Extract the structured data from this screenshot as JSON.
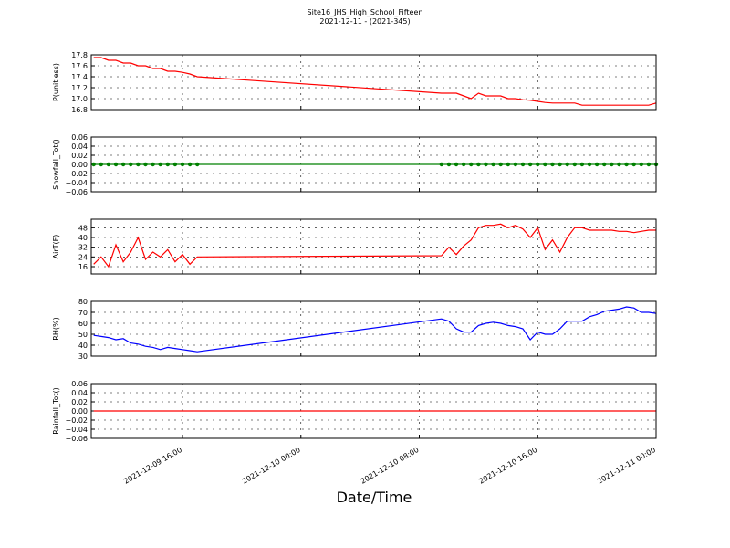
{
  "title": "Site16_JHS_High_School_Fifteen",
  "subtitle": "2021-12-11 - (2021-345)",
  "xlabel": "Date/Time",
  "xlim": [
    "2021-12-09 09:50",
    "2021-12-11 00:00"
  ],
  "xticks": [
    "2021-12-09 16:00",
    "2021-12-10 00:00",
    "2021-12-10 08:00",
    "2021-12-10 16:00",
    "2021-12-11 00:00"
  ],
  "grid": true,
  "x": [
    "2021-12-09 10:00",
    "2021-12-09 10:30",
    "2021-12-09 11:00",
    "2021-12-09 11:30",
    "2021-12-09 12:00",
    "2021-12-09 12:30",
    "2021-12-09 13:00",
    "2021-12-09 13:30",
    "2021-12-09 14:00",
    "2021-12-09 14:30",
    "2021-12-09 15:00",
    "2021-12-09 15:30",
    "2021-12-09 16:00",
    "2021-12-09 16:30",
    "2021-12-09 17:00",
    "2021-12-10 09:30",
    "2021-12-10 10:00",
    "2021-12-10 10:30",
    "2021-12-10 11:00",
    "2021-12-10 11:30",
    "2021-12-10 12:00",
    "2021-12-10 12:30",
    "2021-12-10 13:00",
    "2021-12-10 13:30",
    "2021-12-10 14:00",
    "2021-12-10 14:30",
    "2021-12-10 15:00",
    "2021-12-10 15:30",
    "2021-12-10 16:00",
    "2021-12-10 16:30",
    "2021-12-10 17:00",
    "2021-12-10 17:30",
    "2021-12-10 18:00",
    "2021-12-10 18:30",
    "2021-12-10 19:00",
    "2021-12-10 19:30",
    "2021-12-10 20:00",
    "2021-12-10 20:30",
    "2021-12-10 21:00",
    "2021-12-10 21:30",
    "2021-12-10 22:00",
    "2021-12-10 22:30",
    "2021-12-10 23:00",
    "2021-12-10 23:30",
    "2021-12-11 00:00"
  ],
  "chart_data": [
    {
      "type": "line",
      "ylabel": "P(unitless)",
      "color": "#ff0000",
      "ylim": [
        16.8,
        17.8
      ],
      "yticks": [
        16.8,
        {
          "value": 17,
          "label": "17.0"
        },
        17.2,
        17.4,
        17.6,
        17.8
      ],
      "values": [
        17.75,
        17.75,
        17.7,
        17.7,
        17.65,
        17.65,
        17.6,
        17.6,
        17.55,
        17.55,
        17.5,
        17.5,
        17.48,
        17.45,
        17.4,
        17.1,
        17.1,
        17.1,
        17.05,
        17.0,
        17.1,
        17.05,
        17.05,
        17.05,
        17.0,
        17.0,
        16.98,
        16.97,
        16.95,
        16.93,
        16.92,
        16.92,
        16.92,
        16.92,
        16.88,
        16.88,
        16.88,
        16.88,
        16.88,
        16.88,
        16.88,
        16.88,
        16.88,
        16.88,
        16.92
      ]
    },
    {
      "type": "line",
      "ylabel": "Snowfall_Tot()",
      "color": "#008000",
      "markers": true,
      "ylim": [
        -0.06,
        0.06
      ],
      "yticks": [
        {
          "value": -0.06,
          "label": "−0.06"
        },
        {
          "value": -0.04,
          "label": "−0.04"
        },
        {
          "value": -0.02,
          "label": "−0.02"
        },
        {
          "value": 0,
          "label": "0.00"
        },
        0.02,
        0.04,
        0.06
      ],
      "values": [
        0,
        0,
        0,
        0,
        0,
        0,
        0,
        0,
        0,
        0,
        0,
        0,
        0,
        0,
        0,
        0,
        0,
        0,
        0,
        0,
        0,
        0,
        0,
        0,
        0,
        0,
        0,
        0,
        0,
        0,
        0,
        0,
        0,
        0,
        0,
        0,
        0,
        0,
        0,
        0,
        0,
        0,
        0,
        0,
        0
      ]
    },
    {
      "type": "line",
      "ylabel": "AirT(F)",
      "color": "#ff0000",
      "ylim": [
        10,
        55
      ],
      "yticks": [
        16,
        24,
        32,
        40,
        48
      ],
      "values": [
        18,
        24,
        16,
        34,
        20,
        28,
        40,
        22,
        28,
        24,
        30,
        20,
        26,
        18,
        24,
        25,
        32,
        26,
        33,
        38,
        48,
        50,
        50,
        51,
        48,
        50,
        47,
        40,
        48,
        30,
        38,
        28,
        40,
        48,
        48,
        46,
        46,
        46,
        46,
        45,
        45,
        44,
        45,
        46,
        46
      ]
    },
    {
      "type": "line",
      "ylabel": "RH(%)",
      "color": "#0000ff",
      "ylim": [
        30,
        80
      ],
      "yticks": [
        30,
        40,
        50,
        60,
        70,
        80
      ],
      "values": [
        49,
        48,
        47,
        45,
        46,
        42,
        41,
        39,
        38,
        36,
        38,
        37,
        36,
        35,
        34,
        64,
        62,
        55,
        52,
        52,
        58,
        60,
        61,
        60,
        58,
        57,
        55,
        45,
        52,
        50,
        50,
        55,
        62,
        62,
        62,
        66,
        68,
        71,
        72,
        73,
        75,
        74,
        70,
        70,
        69
      ]
    },
    {
      "type": "line",
      "ylabel": "Rainfall_Tot()",
      "color": "#ff0000",
      "ylim": [
        -0.06,
        0.06
      ],
      "yticks": [
        {
          "value": -0.06,
          "label": "−0.06"
        },
        {
          "value": -0.04,
          "label": "−0.04"
        },
        {
          "value": -0.02,
          "label": "−0.02"
        },
        {
          "value": 0,
          "label": "0.00"
        },
        0.02,
        0.04,
        0.06
      ],
      "values": [
        0,
        0,
        0,
        0,
        0,
        0,
        0,
        0,
        0,
        0,
        0,
        0,
        0,
        0,
        0,
        0,
        0,
        0,
        0,
        0,
        0,
        0,
        0,
        0,
        0,
        0,
        0,
        0,
        0,
        0,
        0,
        0,
        0,
        0,
        0,
        0,
        0,
        0,
        0,
        0,
        0,
        0,
        0,
        0,
        0
      ]
    }
  ]
}
